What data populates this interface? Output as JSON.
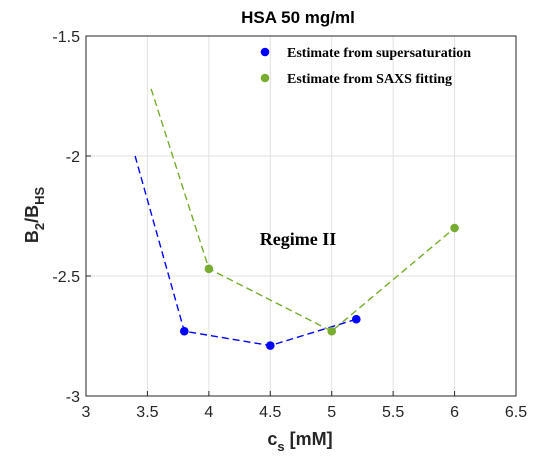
{
  "chart_data": {
    "type": "line",
    "title": "HSA 50 mg/ml",
    "xlabel": {
      "main": "c",
      "sub": "s",
      "rest": " [mM]"
    },
    "ylabel": {
      "b": "B",
      "b_sub": "2",
      "mid": "/B",
      "hs_sub": "HS"
    },
    "xlim": [
      3,
      6.5
    ],
    "ylim": [
      -3,
      -1.5
    ],
    "x_ticks": [
      3,
      3.5,
      4,
      4.5,
      5,
      5.5,
      6,
      6.5
    ],
    "x_tick_labels": [
      "3",
      "3.5",
      "4",
      "4.5",
      "5",
      "5.5",
      "6",
      "6.5"
    ],
    "y_ticks": [
      -3,
      -2.5,
      -2,
      -1.5
    ],
    "y_tick_labels": [
      "-3",
      "-2.5",
      "-2",
      "-1.5"
    ],
    "grid": true,
    "legend_position": "top-right",
    "annotation": "Regime II",
    "series": [
      {
        "name": "Estimate from supersaturation",
        "color": "#0000ff",
        "markers": [
          {
            "x": 3.8,
            "y": -2.73
          },
          {
            "x": 4.5,
            "y": -2.79
          },
          {
            "x": 5.2,
            "y": -2.68
          }
        ],
        "fit_line": [
          {
            "x": 3.4,
            "y": -2.0
          },
          {
            "x": 3.8,
            "y": -2.73
          },
          {
            "x": 4.5,
            "y": -2.79
          },
          {
            "x": 5.2,
            "y": -2.68
          }
        ]
      },
      {
        "name": "Estimate from SAXS fitting",
        "color": "#77ac30",
        "markers": [
          {
            "x": 4.0,
            "y": -2.47
          },
          {
            "x": 5.0,
            "y": -2.73
          },
          {
            "x": 6.0,
            "y": -2.3
          }
        ],
        "fit_line": [
          {
            "x": 3.53,
            "y": -1.72
          },
          {
            "x": 4.0,
            "y": -2.47
          },
          {
            "x": 5.0,
            "y": -2.73
          },
          {
            "x": 6.0,
            "y": -2.3
          }
        ]
      }
    ]
  }
}
